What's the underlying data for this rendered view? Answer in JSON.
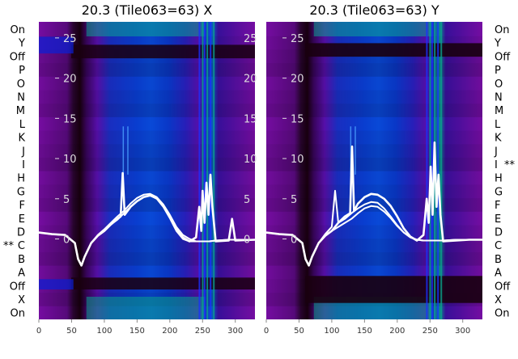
{
  "colors": {
    "heatmap_low": "#1a0010",
    "heatmap_mid": "#7a0ea8",
    "heatmap_high": "#0a1fd6",
    "heatmap_peak": "#0aa28c",
    "trace": "#ffffff"
  },
  "chart_data": [
    {
      "type": "heatmap",
      "title": "20.3 (Tile063=63) X",
      "row_labels": [
        "On",
        "Y",
        "Off",
        "P",
        "O",
        "N",
        "M",
        "L",
        "K",
        "J",
        "I",
        "H",
        "G",
        "F",
        "E",
        "D",
        "C",
        "B",
        "A",
        "Off",
        "X",
        "On"
      ],
      "marked_row": "C",
      "marker": "**",
      "x_ticks": [
        0,
        50,
        100,
        150,
        200,
        250,
        300
      ],
      "xlim": [
        0,
        330
      ],
      "y_ticks": [
        0,
        5,
        10,
        15,
        20,
        25
      ],
      "ylim": [
        -10,
        27
      ],
      "grid": false,
      "overlay_series": [
        {
          "x": [
            0,
            20,
            40,
            55,
            60,
            65,
            70,
            80,
            90,
            100,
            110,
            120,
            130,
            140,
            150,
            160,
            170,
            180,
            190,
            200,
            210,
            220,
            230,
            240,
            245,
            250,
            255,
            260,
            270,
            290,
            310,
            330
          ],
          "y": [
            0.8,
            0.6,
            0.5,
            -0.5,
            -2.5,
            -3.3,
            -2.2,
            -0.5,
            0.5,
            1.2,
            2,
            2.8,
            3.5,
            4.4,
            5.1,
            5.5,
            5.6,
            5.2,
            4.3,
            3,
            1.5,
            0.5,
            0,
            -0.3,
            -0.3,
            -0.3,
            -0.3,
            -0.3,
            -0.2,
            -0.1,
            -0.1,
            -0.1
          ]
        },
        {
          "x": [
            0,
            20,
            40,
            55,
            60,
            65,
            70,
            80,
            90,
            100,
            110,
            120,
            130,
            140,
            150,
            160,
            170,
            180,
            190,
            200,
            210,
            220,
            230,
            240,
            245,
            250,
            255,
            260,
            270,
            290,
            310,
            330
          ],
          "y": [
            0.8,
            0.6,
            0.5,
            -0.5,
            -2.5,
            -3.3,
            -2.2,
            -0.5,
            0.4,
            1,
            1.8,
            2.4,
            3.2,
            4,
            4.7,
            5.2,
            5.4,
            5,
            4,
            2.6,
            1,
            0,
            -0.3,
            -0.3,
            -0.3,
            -0.3,
            -0.3,
            -0.3,
            -0.2,
            -0.1,
            -0.1,
            -0.1
          ]
        },
        {
          "x": [
            0,
            20,
            40,
            55,
            60,
            65,
            70,
            80,
            90,
            100,
            110,
            120,
            125,
            128,
            131,
            140,
            150,
            160,
            170,
            180,
            190,
            200,
            210,
            220,
            230,
            240,
            245,
            248,
            250,
            253,
            256,
            259,
            262,
            265,
            270,
            290,
            295,
            300,
            330
          ],
          "y": [
            0.8,
            0.6,
            0.5,
            -0.5,
            -2.5,
            -3.3,
            -2.2,
            -0.5,
            0.4,
            1,
            1.8,
            2.5,
            2.8,
            8.2,
            3,
            4,
            4.7,
            5.2,
            5.4,
            5.1,
            4.2,
            2.8,
            1.2,
            0.2,
            -0.3,
            0.2,
            4,
            1,
            6,
            2,
            7,
            3,
            8,
            4,
            -0.3,
            -0.2,
            2.5,
            -0.2,
            -0.1
          ]
        }
      ]
    },
    {
      "type": "heatmap",
      "title": "20.3 (Tile063=63) Y",
      "row_labels": [
        "On",
        "Y",
        "Off",
        "P",
        "O",
        "N",
        "M",
        "L",
        "K",
        "J",
        "I",
        "H",
        "G",
        "F",
        "E",
        "D",
        "C",
        "B",
        "A",
        "Off",
        "X",
        "On"
      ],
      "marked_row": "I",
      "marker": "**",
      "x_ticks": [
        0,
        50,
        100,
        150,
        200,
        250,
        300
      ],
      "xlim": [
        0,
        330
      ],
      "y_ticks": [
        0,
        5,
        10,
        15,
        20,
        25
      ],
      "ylim": [
        -10,
        27
      ],
      "grid": false,
      "overlay_series": [
        {
          "x": [
            0,
            20,
            40,
            55,
            60,
            65,
            70,
            80,
            90,
            100,
            110,
            120,
            130,
            140,
            150,
            160,
            170,
            180,
            190,
            200,
            210,
            220,
            230,
            240,
            250,
            260,
            270,
            290,
            310,
            330
          ],
          "y": [
            0.8,
            0.6,
            0.5,
            -0.5,
            -2.5,
            -3.3,
            -2.2,
            -0.5,
            0.4,
            1,
            1.5,
            2,
            2.5,
            3.2,
            3.8,
            4.1,
            4,
            3.4,
            2.6,
            1.6,
            0.8,
            0.2,
            -0.1,
            -0.2,
            -0.2,
            -0.2,
            -0.2,
            -0.1,
            -0.1,
            -0.1
          ]
        },
        {
          "x": [
            0,
            20,
            40,
            55,
            60,
            65,
            70,
            80,
            90,
            100,
            105,
            110,
            120,
            130,
            140,
            150,
            160,
            170,
            180,
            190,
            200,
            210,
            220,
            230,
            240,
            250,
            260,
            270,
            290,
            310,
            330
          ],
          "y": [
            0.8,
            0.6,
            0.5,
            -0.5,
            -2.5,
            -3.3,
            -2.2,
            -0.5,
            0.6,
            1.5,
            6,
            2,
            2.5,
            3.2,
            3.8,
            4.3,
            4.6,
            4.5,
            3.8,
            2.8,
            1.7,
            0.8,
            0.2,
            -0.1,
            -0.2,
            -0.2,
            -0.2,
            -0.2,
            -0.1,
            -0.1,
            -0.1
          ]
        },
        {
          "x": [
            0,
            20,
            40,
            55,
            60,
            65,
            70,
            80,
            90,
            100,
            110,
            120,
            128,
            131,
            134,
            140,
            150,
            160,
            170,
            180,
            190,
            200,
            210,
            220,
            230,
            240,
            245,
            248,
            251,
            254,
            257,
            260,
            263,
            266,
            270,
            290,
            310,
            330
          ],
          "y": [
            0.8,
            0.6,
            0.5,
            -0.5,
            -2.5,
            -3.3,
            -2.2,
            -0.5,
            0.4,
            1,
            2,
            2.8,
            3.2,
            11.5,
            3.5,
            4.4,
            5.2,
            5.6,
            5.5,
            5,
            4.1,
            2.8,
            1.3,
            0.3,
            -0.2,
            0.5,
            5,
            2,
            9,
            3,
            12,
            4,
            8,
            3,
            -0.3,
            -0.2,
            -0.1,
            -0.1
          ]
        }
      ]
    }
  ]
}
